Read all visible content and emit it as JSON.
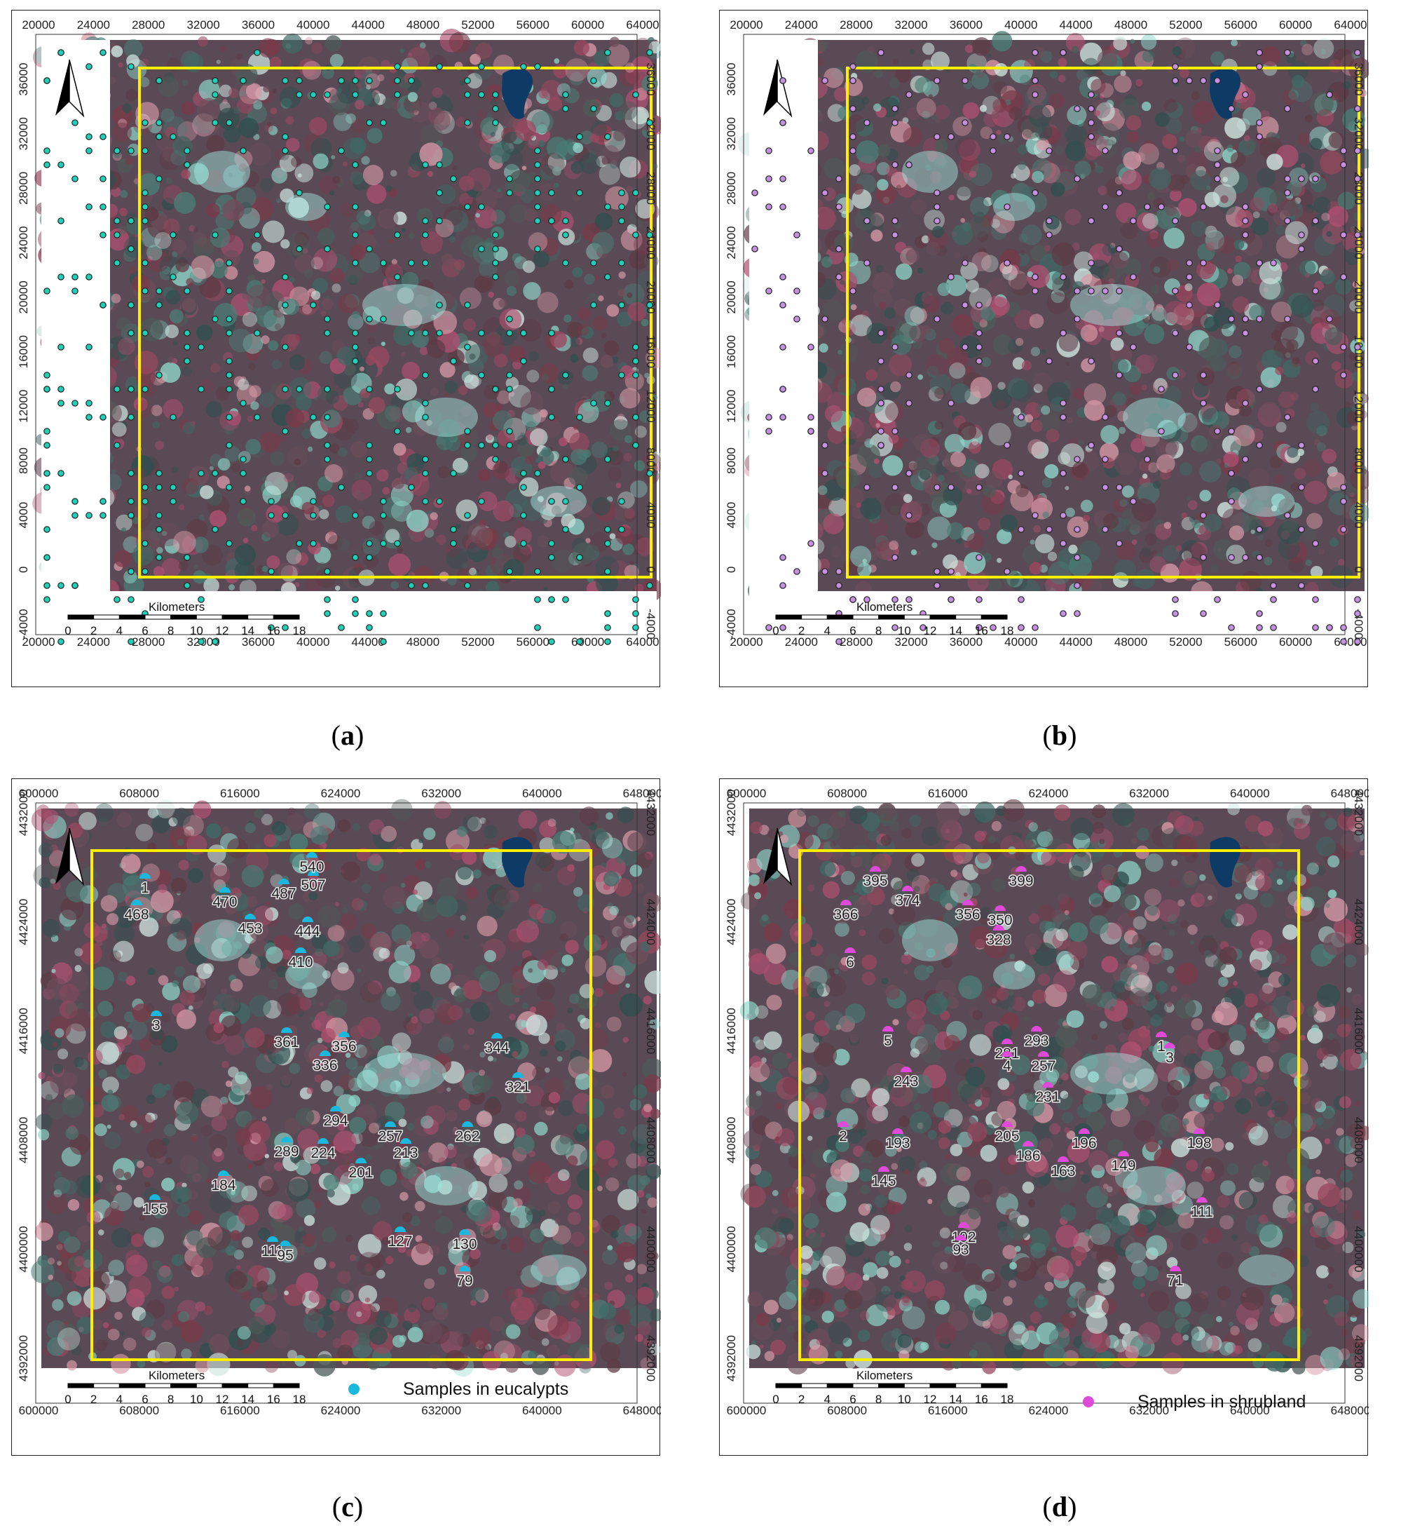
{
  "panels": [
    {
      "id": "a",
      "caption": "a",
      "x_ticks": [
        "20000",
        "24000",
        "28000",
        "32000",
        "36000",
        "40000",
        "44000",
        "48000",
        "52000",
        "56000",
        "60000",
        "64000"
      ],
      "y_ticks": [
        "36000",
        "32000",
        "28000",
        "24000",
        "20000",
        "16000",
        "12000",
        "8000",
        "4000",
        "0",
        "-4000"
      ],
      "scalebar_title": "Kilometers",
      "scalebar_labels": [
        "0",
        "2",
        "4",
        "6",
        "8",
        "10",
        "12",
        "14",
        "16",
        "18"
      ],
      "point_color": "#1fcfb8",
      "labels": [],
      "legend": ""
    },
    {
      "id": "b",
      "caption": "b",
      "x_ticks": [
        "20000",
        "24000",
        "28000",
        "32000",
        "36000",
        "40000",
        "44000",
        "48000",
        "52000",
        "56000",
        "60000",
        "64000"
      ],
      "y_ticks": [
        "36000",
        "32000",
        "28000",
        "24000",
        "20000",
        "16000",
        "12000",
        "8000",
        "4000",
        "0",
        "-4000"
      ],
      "scalebar_title": "Kilometers",
      "scalebar_labels": [
        "0",
        "2",
        "4",
        "6",
        "8",
        "10",
        "12",
        "14",
        "16",
        "18"
      ],
      "point_color": "#c690e0",
      "labels": [],
      "legend": ""
    },
    {
      "id": "c",
      "caption": "c",
      "x_ticks": [
        "600000",
        "608000",
        "616000",
        "624000",
        "632000",
        "640000",
        "648000"
      ],
      "y_ticks": [
        "4432000",
        "4424000",
        "4416000",
        "4408000",
        "4400000",
        "4392000"
      ],
      "scalebar_title": "Kilometers",
      "scalebar_labels": [
        "0",
        "2",
        "4",
        "6",
        "8",
        "10",
        "12",
        "14",
        "16",
        "18"
      ],
      "point_color": "#19b8dc",
      "labels": [
        "1",
        "468",
        "470",
        "453",
        "487",
        "507",
        "540",
        "444",
        "410",
        "3",
        "361",
        "356",
        "336",
        "344",
        "321",
        "294",
        "257",
        "262",
        "289",
        "224",
        "213",
        "201",
        "184",
        "155",
        "127",
        "130",
        "111",
        "95",
        "79"
      ],
      "legend": "Samples in eucalypts"
    },
    {
      "id": "d",
      "caption": "d",
      "x_ticks": [
        "600000",
        "608000",
        "616000",
        "624000",
        "632000",
        "640000",
        "648000"
      ],
      "y_ticks": [
        "4432000",
        "4424000",
        "4416000",
        "4408000",
        "4400000",
        "4392000"
      ],
      "scalebar_title": "Kilometers",
      "scalebar_labels": [
        "0",
        "2",
        "4",
        "6",
        "8",
        "10",
        "12",
        "14",
        "16",
        "18"
      ],
      "point_color": "#e04ad8",
      "labels": [
        "395",
        "399",
        "374",
        "366",
        "356",
        "350",
        "328",
        "6",
        "5",
        "281",
        "293",
        "1",
        "3",
        "4",
        "257",
        "243",
        "231",
        "2",
        "193",
        "205",
        "196",
        "198",
        "186",
        "163",
        "149",
        "145",
        "111",
        "102",
        "93",
        "71"
      ],
      "legend": "Samples in shrubland"
    }
  ],
  "colors": {
    "frame": "#222222",
    "study_area": "#ffee00",
    "water": "#0d3b66"
  }
}
